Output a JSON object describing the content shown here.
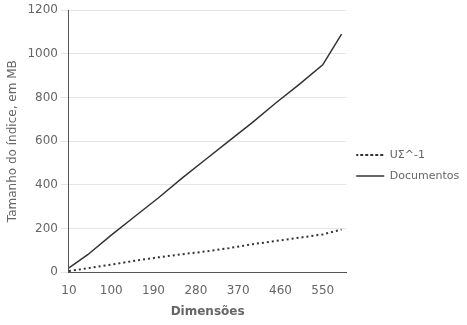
{
  "chart_data": {
    "type": "line",
    "xlabel": "Dimensões",
    "ylabel": "Tamanho do índice, em MB",
    "x": [
      10,
      50,
      100,
      150,
      200,
      250,
      300,
      350,
      400,
      450,
      500,
      550,
      590
    ],
    "series": [
      {
        "name": "Documentos",
        "color": "#333333",
        "line_style": "solid",
        "values": [
          20,
          80,
          170,
          255,
          340,
          430,
          515,
          600,
          685,
          775,
          860,
          950,
          1090
        ]
      },
      {
        "name": "UΣ^-1",
        "color": "#333333",
        "line_style": "dotted",
        "values": [
          5,
          18,
          35,
          52,
          68,
          82,
          95,
          110,
          128,
          143,
          158,
          173,
          195
        ]
      }
    ],
    "xlim": [
      10,
      600
    ],
    "xticks": [
      10,
      100,
      190,
      280,
      370,
      460,
      550
    ],
    "ylim": [
      0,
      1200
    ],
    "yticks": [
      0,
      200,
      400,
      600,
      800,
      1000,
      1200
    ],
    "grid": "y",
    "legend": "center right"
  }
}
